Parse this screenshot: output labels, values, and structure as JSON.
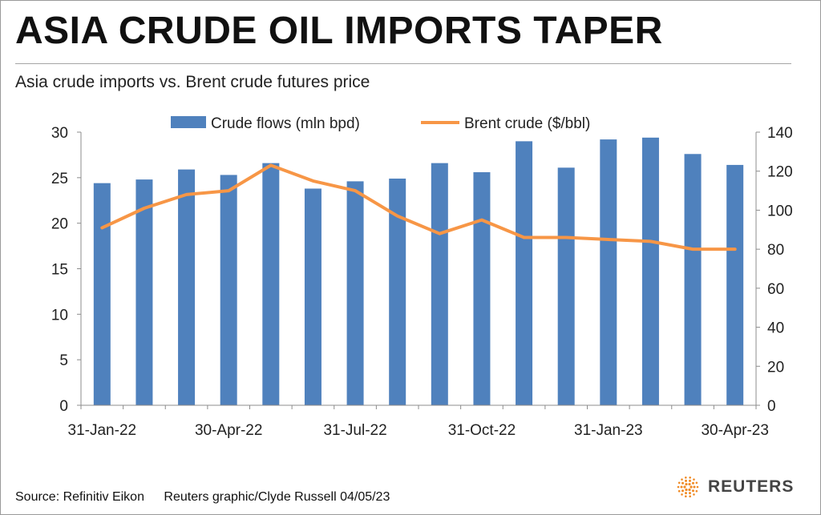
{
  "header": {
    "title": "ASIA CRUDE OIL IMPORTS TAPER",
    "subtitle": "Asia crude imports vs. Brent crude futures price"
  },
  "footer": {
    "source": "Source: Refinitiv Eikon",
    "credit": "Reuters graphic/Clyde Russell 04/05/23"
  },
  "brand": {
    "name": "REUTERS",
    "logo_icon": "reuters-sun-icon",
    "logo_color": "#f08a24"
  },
  "chart_data": {
    "type": "bar",
    "title": "",
    "xlabel": "",
    "ylabel": "",
    "x": [
      "31-Jan-22",
      "28-Feb-22",
      "31-Mar-22",
      "30-Apr-22",
      "31-May-22",
      "30-Jun-22",
      "31-Jul-22",
      "31-Aug-22",
      "30-Sep-22",
      "31-Oct-22",
      "30-Nov-22",
      "31-Dec-22",
      "31-Jan-23",
      "28-Feb-23",
      "31-Mar-23",
      "30-Apr-23"
    ],
    "x_tick_labels": [
      "31-Jan-22",
      "30-Apr-22",
      "31-Jul-22",
      "31-Oct-22",
      "31-Jan-23",
      "30-Apr-23"
    ],
    "x_tick_indices": [
      0,
      3,
      6,
      9,
      12,
      15
    ],
    "series": [
      {
        "name": "Crude flows (mln bpd)",
        "type": "bar",
        "axis": "left",
        "color": "#4f81bd",
        "values": [
          24.4,
          24.8,
          25.9,
          25.3,
          26.6,
          23.8,
          24.6,
          24.9,
          26.6,
          25.6,
          29.0,
          26.1,
          29.2,
          29.4,
          27.6,
          26.4
        ]
      },
      {
        "name": "Brent crude ($/bbl)",
        "type": "line",
        "axis": "right",
        "color": "#f79646",
        "values": [
          91,
          101,
          108,
          110,
          123,
          115,
          110,
          97,
          88,
          95,
          86,
          86,
          85,
          84,
          80,
          80
        ]
      }
    ],
    "y_left": {
      "lim": [
        0,
        30
      ],
      "ticks": [
        0,
        5,
        10,
        15,
        20,
        25,
        30
      ]
    },
    "y_right": {
      "lim": [
        0,
        140
      ],
      "ticks": [
        0,
        20,
        40,
        60,
        80,
        100,
        120,
        140
      ]
    },
    "grid": false,
    "legend": "top-center"
  }
}
